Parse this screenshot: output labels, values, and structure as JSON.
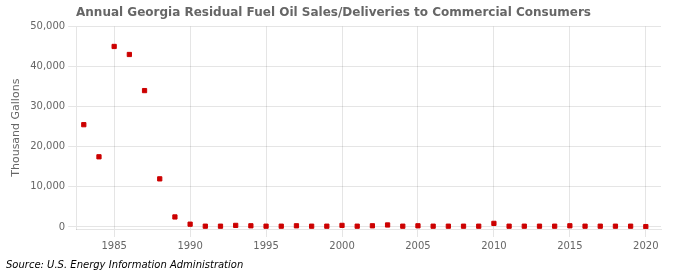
{
  "chart_data": {
    "type": "scatter",
    "title": "Annual Georgia Residual Fuel Oil Sales/Deliveries to Commercial Consumers",
    "ylabel": "Thousand Gallons",
    "annotations": [
      "Source: U.S. Energy Information Administration"
    ],
    "x": [
      1983,
      1984,
      1985,
      1986,
      1987,
      1988,
      1989,
      1990,
      1991,
      1992,
      1993,
      1994,
      1995,
      1996,
      1997,
      1998,
      1999,
      2000,
      2001,
      2002,
      2003,
      2004,
      2005,
      2006,
      2007,
      2008,
      2009,
      2010,
      2011,
      2012,
      2013,
      2014,
      2015,
      2016,
      2017,
      2018,
      2019,
      2020
    ],
    "values": [
      25500,
      17500,
      45000,
      43000,
      34000,
      12000,
      2500,
      700,
      200,
      200,
      400,
      300,
      200,
      200,
      300,
      200,
      200,
      400,
      200,
      300,
      500,
      200,
      300,
      200,
      200,
      200,
      200,
      900,
      200,
      200,
      200,
      200,
      300,
      200,
      200,
      200,
      200,
      100
    ],
    "color": "#cc0000",
    "marker": "square",
    "xlim": [
      1982.5,
      2021
    ],
    "xticks": [
      1985,
      1990,
      1995,
      2000,
      2005,
      2010,
      2015,
      2020
    ],
    "ylim": [
      -500,
      50000
    ],
    "yticks": [
      0,
      {
        "value": 10000,
        "label": "10,000"
      },
      {
        "value": 20000,
        "label": "20,000"
      },
      {
        "value": 30000,
        "label": "30,000"
      },
      {
        "value": 40000,
        "label": "40,000"
      },
      {
        "value": 50000,
        "label": "50,000"
      }
    ],
    "grid": true
  }
}
